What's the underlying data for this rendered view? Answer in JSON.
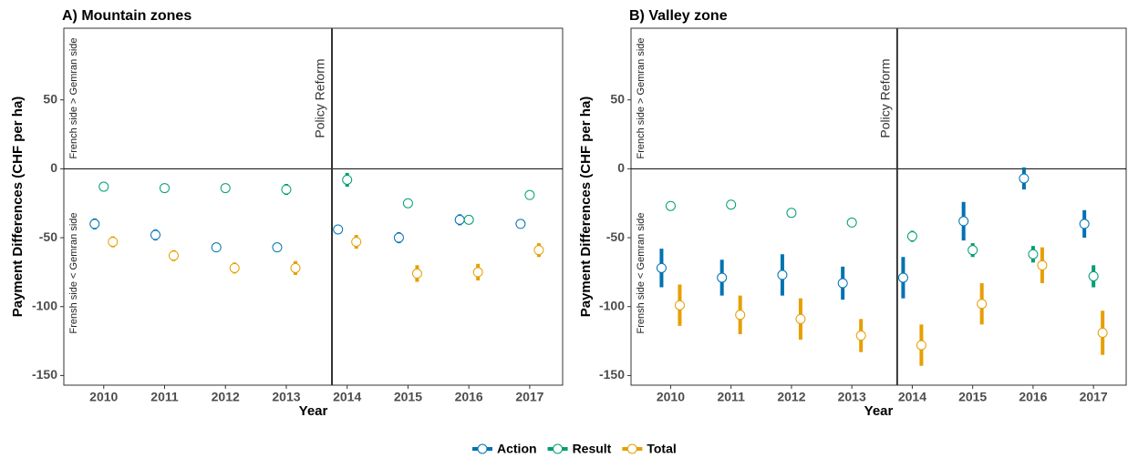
{
  "chart_data": [
    {
      "type": "errorbar",
      "title": "A) Mountain zones",
      "x_label": "Year",
      "y_label": "Payment Differences (CHF per ha)",
      "annotations": [
        "French side > Gemran side",
        "Frensh side < Gemran side"
      ],
      "reform_label": "Policy Reform",
      "categories": [
        "2010",
        "2011",
        "2012",
        "2013",
        "2014",
        "2015",
        "2016",
        "2017"
      ],
      "ylim": [
        -157,
        102
      ],
      "yticks": [
        -150,
        -100,
        -50,
        0,
        50
      ],
      "series": [
        {
          "name": "Action",
          "color": "#0072B2",
          "values": [
            -40,
            -48,
            -57,
            -57,
            -44,
            -50,
            -37,
            -40
          ],
          "errors": [
            4,
            4,
            3,
            3,
            2,
            4,
            4,
            3
          ]
        },
        {
          "name": "Result",
          "color": "#009E73",
          "values": [
            -13,
            -14,
            -14,
            -15,
            -8,
            -25,
            -37,
            -19
          ],
          "errors": [
            1,
            3,
            3,
            4,
            5,
            3,
            3,
            2
          ]
        },
        {
          "name": "Total",
          "color": "#E69F00",
          "values": [
            -53,
            -63,
            -72,
            -72,
            -53,
            -76,
            -75,
            -59
          ],
          "errors": [
            4,
            4,
            4,
            5,
            5,
            6,
            6,
            5
          ]
        }
      ]
    },
    {
      "type": "errorbar",
      "title": "B) Valley zone",
      "x_label": "Year",
      "y_label": "Payment Differences (CHF per ha)",
      "annotations": [
        "French side > Gemran side",
        "Frensh side < Gemran side"
      ],
      "reform_label": "Policy Reform",
      "categories": [
        "2010",
        "2011",
        "2012",
        "2013",
        "2014",
        "2015",
        "2016",
        "2017"
      ],
      "ylim": [
        -157,
        102
      ],
      "yticks": [
        -150,
        -100,
        -50,
        0,
        50
      ],
      "series": [
        {
          "name": "Action",
          "color": "#0072B2",
          "values": [
            -72,
            -79,
            -77,
            -83,
            -79,
            -38,
            -7,
            -40
          ],
          "errors": [
            14,
            13,
            15,
            12,
            15,
            14,
            8,
            10
          ]
        },
        {
          "name": "Result",
          "color": "#009E73",
          "values": [
            -27,
            -26,
            -32,
            -39,
            -49,
            -59,
            -62,
            -78
          ],
          "errors": [
            1,
            3,
            2,
            3,
            4,
            5,
            6,
            8
          ]
        },
        {
          "name": "Total",
          "color": "#E69F00",
          "values": [
            -99,
            -106,
            -109,
            -121,
            -128,
            -98,
            -70,
            -119
          ],
          "errors": [
            15,
            14,
            15,
            12,
            15,
            15,
            13,
            16
          ]
        }
      ]
    }
  ]
}
